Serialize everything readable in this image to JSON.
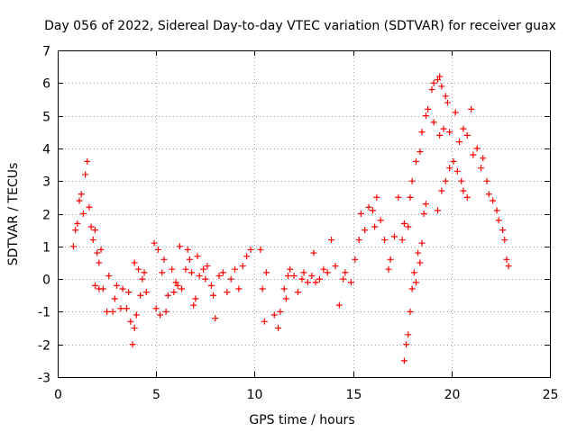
{
  "chart_data": {
    "type": "scatter",
    "title": "Day 056 of 2022, Sidereal Day-to-day VTEC variation (SDTVAR) for receiver guax",
    "xlabel": "GPS time / hours",
    "ylabel": "SDTVAR / TECUs",
    "xlim": [
      0,
      25
    ],
    "ylim": [
      -3,
      7
    ],
    "x_ticks": [
      "0",
      "5",
      "10",
      "15",
      "20",
      "25"
    ],
    "y_ticks": [
      "-3",
      "-2",
      "-1",
      "0",
      "1",
      "2",
      "3",
      "4",
      "5",
      "6",
      "7"
    ],
    "grid": true,
    "marker": "+",
    "color": "#ff0000",
    "series": [
      {
        "name": "SDTVAR",
        "points": [
          [
            0.8,
            1.0
          ],
          [
            0.9,
            1.5
          ],
          [
            1.0,
            1.7
          ],
          [
            1.1,
            2.4
          ],
          [
            1.2,
            2.6
          ],
          [
            1.3,
            2.0
          ],
          [
            1.4,
            3.2
          ],
          [
            1.5,
            3.6
          ],
          [
            1.6,
            2.2
          ],
          [
            1.7,
            1.6
          ],
          [
            1.8,
            1.2
          ],
          [
            1.9,
            1.5
          ],
          [
            2.0,
            0.8
          ],
          [
            2.1,
            0.5
          ],
          [
            2.2,
            0.9
          ],
          [
            1.9,
            -0.2
          ],
          [
            2.1,
            -0.3
          ],
          [
            2.3,
            -0.3
          ],
          [
            2.5,
            -1.0
          ],
          [
            2.6,
            0.1
          ],
          [
            2.8,
            -1.0
          ],
          [
            2.9,
            -0.6
          ],
          [
            3.0,
            -0.2
          ],
          [
            3.2,
            -0.9
          ],
          [
            3.3,
            -0.3
          ],
          [
            3.5,
            -0.9
          ],
          [
            3.6,
            -0.4
          ],
          [
            3.7,
            -1.3
          ],
          [
            3.8,
            -2.0
          ],
          [
            3.9,
            -1.5
          ],
          [
            3.9,
            0.5
          ],
          [
            4.0,
            -1.1
          ],
          [
            4.1,
            0.3
          ],
          [
            4.2,
            -0.5
          ],
          [
            4.3,
            0.0
          ],
          [
            4.4,
            0.2
          ],
          [
            4.5,
            -0.4
          ],
          [
            4.9,
            1.1
          ],
          [
            5.0,
            -0.9
          ],
          [
            5.1,
            0.9
          ],
          [
            5.2,
            -1.1
          ],
          [
            5.3,
            0.2
          ],
          [
            5.4,
            0.6
          ],
          [
            5.5,
            -1.0
          ],
          [
            5.6,
            -0.5
          ],
          [
            5.8,
            0.3
          ],
          [
            5.9,
            -0.4
          ],
          [
            6.0,
            -0.1
          ],
          [
            6.1,
            -0.2
          ],
          [
            6.2,
            1.0
          ],
          [
            6.3,
            -0.3
          ],
          [
            6.5,
            0.3
          ],
          [
            6.6,
            0.9
          ],
          [
            6.7,
            0.6
          ],
          [
            6.8,
            0.2
          ],
          [
            6.9,
            -0.8
          ],
          [
            7.0,
            -0.6
          ],
          [
            7.1,
            0.7
          ],
          [
            7.2,
            0.1
          ],
          [
            7.4,
            0.3
          ],
          [
            7.5,
            0.0
          ],
          [
            7.6,
            0.4
          ],
          [
            7.8,
            -0.2
          ],
          [
            7.9,
            -0.5
          ],
          [
            8.0,
            -1.2
          ],
          [
            8.2,
            0.1
          ],
          [
            8.4,
            0.2
          ],
          [
            8.6,
            -0.4
          ],
          [
            8.8,
            0.0
          ],
          [
            9.0,
            0.3
          ],
          [
            9.2,
            -0.3
          ],
          [
            9.4,
            0.4
          ],
          [
            9.6,
            0.7
          ],
          [
            9.8,
            0.9
          ],
          [
            10.3,
            0.9
          ],
          [
            10.4,
            -0.3
          ],
          [
            10.5,
            -1.3
          ],
          [
            10.6,
            0.2
          ],
          [
            11.0,
            -1.1
          ],
          [
            11.2,
            -1.5
          ],
          [
            11.3,
            -1.0
          ],
          [
            11.5,
            -0.3
          ],
          [
            11.6,
            -0.6
          ],
          [
            11.7,
            0.1
          ],
          [
            11.8,
            0.3
          ],
          [
            12.0,
            0.1
          ],
          [
            12.2,
            -0.4
          ],
          [
            12.4,
            0.0
          ],
          [
            12.5,
            0.2
          ],
          [
            12.7,
            -0.1
          ],
          [
            12.9,
            0.1
          ],
          [
            13.0,
            0.8
          ],
          [
            13.1,
            -0.1
          ],
          [
            13.3,
            0.0
          ],
          [
            13.5,
            0.3
          ],
          [
            13.7,
            0.2
          ],
          [
            13.9,
            1.2
          ],
          [
            14.1,
            0.4
          ],
          [
            14.3,
            -0.8
          ],
          [
            14.5,
            0.0
          ],
          [
            14.6,
            0.2
          ],
          [
            14.9,
            -0.1
          ],
          [
            15.1,
            0.6
          ],
          [
            15.3,
            1.2
          ],
          [
            15.4,
            2.0
          ],
          [
            15.6,
            1.5
          ],
          [
            15.8,
            2.2
          ],
          [
            16.0,
            2.1
          ],
          [
            16.1,
            1.6
          ],
          [
            16.2,
            2.5
          ],
          [
            16.4,
            1.8
          ],
          [
            16.6,
            1.2
          ],
          [
            16.8,
            0.3
          ],
          [
            16.9,
            0.6
          ],
          [
            17.1,
            1.3
          ],
          [
            17.3,
            2.5
          ],
          [
            17.5,
            1.2
          ],
          [
            17.6,
            1.7
          ],
          [
            17.8,
            1.6
          ],
          [
            17.6,
            -2.5
          ],
          [
            17.7,
            -2.0
          ],
          [
            17.8,
            -1.7
          ],
          [
            17.9,
            -1.0
          ],
          [
            18.0,
            -0.3
          ],
          [
            18.1,
            0.2
          ],
          [
            18.2,
            -0.1
          ],
          [
            18.3,
            0.8
          ],
          [
            18.4,
            0.5
          ],
          [
            18.5,
            1.1
          ],
          [
            18.6,
            2.0
          ],
          [
            18.7,
            2.3
          ],
          [
            17.9,
            2.5
          ],
          [
            18.0,
            3.0
          ],
          [
            18.2,
            3.6
          ],
          [
            18.4,
            3.9
          ],
          [
            18.5,
            4.5
          ],
          [
            18.7,
            5.0
          ],
          [
            18.8,
            5.2
          ],
          [
            19.0,
            5.8
          ],
          [
            19.1,
            6.0
          ],
          [
            19.3,
            6.1
          ],
          [
            19.4,
            6.2
          ],
          [
            19.5,
            5.9
          ],
          [
            19.7,
            5.6
          ],
          [
            19.8,
            5.4
          ],
          [
            19.3,
            2.1
          ],
          [
            19.5,
            2.7
          ],
          [
            19.7,
            3.0
          ],
          [
            19.9,
            3.4
          ],
          [
            20.1,
            3.6
          ],
          [
            20.3,
            3.3
          ],
          [
            20.5,
            3.0
          ],
          [
            20.6,
            2.7
          ],
          [
            20.8,
            2.5
          ],
          [
            19.1,
            4.8
          ],
          [
            19.4,
            4.4
          ],
          [
            19.6,
            4.6
          ],
          [
            19.9,
            4.5
          ],
          [
            20.2,
            5.1
          ],
          [
            20.4,
            4.2
          ],
          [
            20.6,
            4.6
          ],
          [
            20.8,
            4.4
          ],
          [
            21.0,
            5.2
          ],
          [
            21.1,
            3.8
          ],
          [
            21.3,
            4.0
          ],
          [
            21.5,
            3.4
          ],
          [
            21.6,
            3.7
          ],
          [
            21.8,
            3.0
          ],
          [
            21.9,
            2.6
          ],
          [
            22.1,
            2.4
          ],
          [
            22.3,
            2.1
          ],
          [
            22.4,
            1.8
          ],
          [
            22.6,
            1.5
          ],
          [
            22.7,
            1.2
          ],
          [
            22.8,
            0.6
          ],
          [
            22.9,
            0.4
          ]
        ]
      }
    ]
  }
}
